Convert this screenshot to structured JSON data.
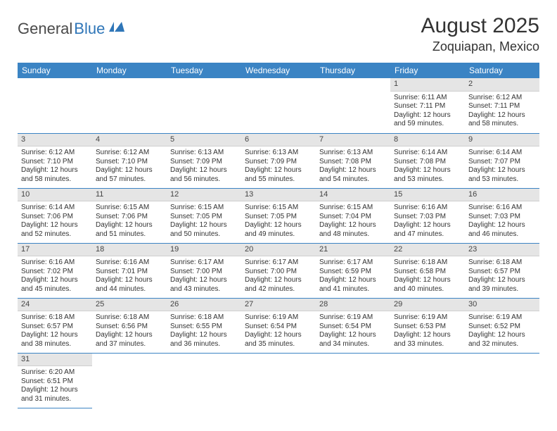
{
  "logo": {
    "part1": "General",
    "part2": "Blue"
  },
  "title": "August 2025",
  "location": "Zoquiapan, Mexico",
  "colors": {
    "header_bg": "#3b84c4",
    "header_text": "#ffffff",
    "daynum_bg": "#e5e5e5",
    "cell_border": "#3b84c4",
    "logo_gray": "#4a4a4a",
    "logo_blue": "#2f76b8"
  },
  "weekdays": [
    "Sunday",
    "Monday",
    "Tuesday",
    "Wednesday",
    "Thursday",
    "Friday",
    "Saturday"
  ],
  "first_weekday_index": 5,
  "days": [
    {
      "n": 1,
      "sr": "6:11 AM",
      "ss": "7:11 PM",
      "dl": "12 hours and 59 minutes."
    },
    {
      "n": 2,
      "sr": "6:12 AM",
      "ss": "7:11 PM",
      "dl": "12 hours and 58 minutes."
    },
    {
      "n": 3,
      "sr": "6:12 AM",
      "ss": "7:10 PM",
      "dl": "12 hours and 58 minutes."
    },
    {
      "n": 4,
      "sr": "6:12 AM",
      "ss": "7:10 PM",
      "dl": "12 hours and 57 minutes."
    },
    {
      "n": 5,
      "sr": "6:13 AM",
      "ss": "7:09 PM",
      "dl": "12 hours and 56 minutes."
    },
    {
      "n": 6,
      "sr": "6:13 AM",
      "ss": "7:09 PM",
      "dl": "12 hours and 55 minutes."
    },
    {
      "n": 7,
      "sr": "6:13 AM",
      "ss": "7:08 PM",
      "dl": "12 hours and 54 minutes."
    },
    {
      "n": 8,
      "sr": "6:14 AM",
      "ss": "7:08 PM",
      "dl": "12 hours and 53 minutes."
    },
    {
      "n": 9,
      "sr": "6:14 AM",
      "ss": "7:07 PM",
      "dl": "12 hours and 53 minutes."
    },
    {
      "n": 10,
      "sr": "6:14 AM",
      "ss": "7:06 PM",
      "dl": "12 hours and 52 minutes."
    },
    {
      "n": 11,
      "sr": "6:15 AM",
      "ss": "7:06 PM",
      "dl": "12 hours and 51 minutes."
    },
    {
      "n": 12,
      "sr": "6:15 AM",
      "ss": "7:05 PM",
      "dl": "12 hours and 50 minutes."
    },
    {
      "n": 13,
      "sr": "6:15 AM",
      "ss": "7:05 PM",
      "dl": "12 hours and 49 minutes."
    },
    {
      "n": 14,
      "sr": "6:15 AM",
      "ss": "7:04 PM",
      "dl": "12 hours and 48 minutes."
    },
    {
      "n": 15,
      "sr": "6:16 AM",
      "ss": "7:03 PM",
      "dl": "12 hours and 47 minutes."
    },
    {
      "n": 16,
      "sr": "6:16 AM",
      "ss": "7:03 PM",
      "dl": "12 hours and 46 minutes."
    },
    {
      "n": 17,
      "sr": "6:16 AM",
      "ss": "7:02 PM",
      "dl": "12 hours and 45 minutes."
    },
    {
      "n": 18,
      "sr": "6:16 AM",
      "ss": "7:01 PM",
      "dl": "12 hours and 44 minutes."
    },
    {
      "n": 19,
      "sr": "6:17 AM",
      "ss": "7:00 PM",
      "dl": "12 hours and 43 minutes."
    },
    {
      "n": 20,
      "sr": "6:17 AM",
      "ss": "7:00 PM",
      "dl": "12 hours and 42 minutes."
    },
    {
      "n": 21,
      "sr": "6:17 AM",
      "ss": "6:59 PM",
      "dl": "12 hours and 41 minutes."
    },
    {
      "n": 22,
      "sr": "6:18 AM",
      "ss": "6:58 PM",
      "dl": "12 hours and 40 minutes."
    },
    {
      "n": 23,
      "sr": "6:18 AM",
      "ss": "6:57 PM",
      "dl": "12 hours and 39 minutes."
    },
    {
      "n": 24,
      "sr": "6:18 AM",
      "ss": "6:57 PM",
      "dl": "12 hours and 38 minutes."
    },
    {
      "n": 25,
      "sr": "6:18 AM",
      "ss": "6:56 PM",
      "dl": "12 hours and 37 minutes."
    },
    {
      "n": 26,
      "sr": "6:18 AM",
      "ss": "6:55 PM",
      "dl": "12 hours and 36 minutes."
    },
    {
      "n": 27,
      "sr": "6:19 AM",
      "ss": "6:54 PM",
      "dl": "12 hours and 35 minutes."
    },
    {
      "n": 28,
      "sr": "6:19 AM",
      "ss": "6:54 PM",
      "dl": "12 hours and 34 minutes."
    },
    {
      "n": 29,
      "sr": "6:19 AM",
      "ss": "6:53 PM",
      "dl": "12 hours and 33 minutes."
    },
    {
      "n": 30,
      "sr": "6:19 AM",
      "ss": "6:52 PM",
      "dl": "12 hours and 32 minutes."
    },
    {
      "n": 31,
      "sr": "6:20 AM",
      "ss": "6:51 PM",
      "dl": "12 hours and 31 minutes."
    }
  ],
  "labels": {
    "sunrise": "Sunrise:",
    "sunset": "Sunset:",
    "daylight": "Daylight:"
  }
}
